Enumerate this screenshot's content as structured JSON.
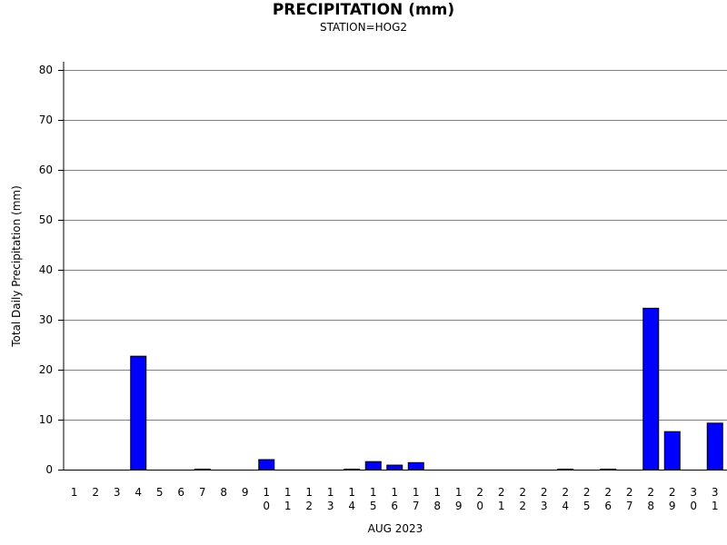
{
  "chart_data": {
    "type": "bar",
    "title": "PRECIPITATION (mm)",
    "subtitle": "STATION=HOG2",
    "xlabel": "AUG 2023",
    "ylabel": "Total Daily Precipitation (mm)",
    "ylim": [
      0,
      80
    ],
    "yticks": [
      0,
      10,
      20,
      30,
      40,
      50,
      60,
      70,
      80
    ],
    "grid": true,
    "bar_color": "#0000ff",
    "categories": [
      "1",
      "2",
      "3",
      "4",
      "5",
      "6",
      "7",
      "8",
      "9",
      "10",
      "11",
      "12",
      "13",
      "14",
      "15",
      "16",
      "17",
      "18",
      "19",
      "20",
      "21",
      "22",
      "23",
      "24",
      "25",
      "26",
      "27",
      "28",
      "29",
      "30",
      "31"
    ],
    "values": [
      0,
      0,
      0,
      22.7,
      0,
      0,
      0.1,
      0,
      0,
      2.0,
      0,
      0,
      0,
      0.1,
      1.6,
      0.9,
      1.4,
      0,
      0,
      0,
      0,
      0,
      0,
      0.1,
      0,
      0.1,
      0,
      32.3,
      7.6,
      0,
      9.3
    ]
  }
}
